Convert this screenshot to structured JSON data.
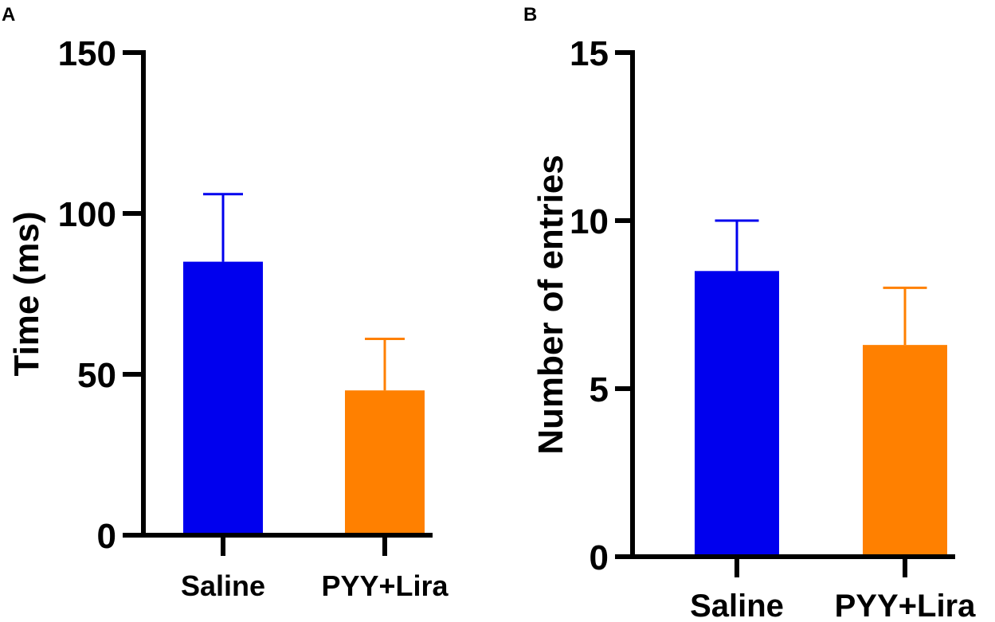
{
  "colors": {
    "saline": "#0000ee",
    "pyy_lira": "#ff8000",
    "axis": "#000000"
  },
  "chart_data": [
    {
      "panel_label": "A",
      "type": "bar",
      "title": "",
      "xlabel": "",
      "ylabel": "Time (ms)",
      "ylim": [
        0,
        150
      ],
      "ytick_values": [
        0,
        50,
        100,
        150
      ],
      "ytick_labels": [
        "0",
        "50",
        "100",
        "150"
      ],
      "categories": [
        "Saline",
        "PYY+Lira"
      ],
      "values": [
        85,
        45
      ],
      "error_upper": [
        106,
        61
      ],
      "bar_colors": [
        "#0000ee",
        "#ff8000"
      ]
    },
    {
      "panel_label": "B",
      "type": "bar",
      "title": "",
      "xlabel": "",
      "ylabel": "Number of entries",
      "ylim": [
        0,
        15
      ],
      "ytick_values": [
        0,
        5,
        10,
        15
      ],
      "ytick_labels": [
        "0",
        "5",
        "10",
        "15"
      ],
      "categories": [
        "Saline",
        "PYY+Lira"
      ],
      "values": [
        8.5,
        6.3
      ],
      "error_upper": [
        10,
        8
      ],
      "bar_colors": [
        "#0000ee",
        "#ff8000"
      ]
    }
  ]
}
